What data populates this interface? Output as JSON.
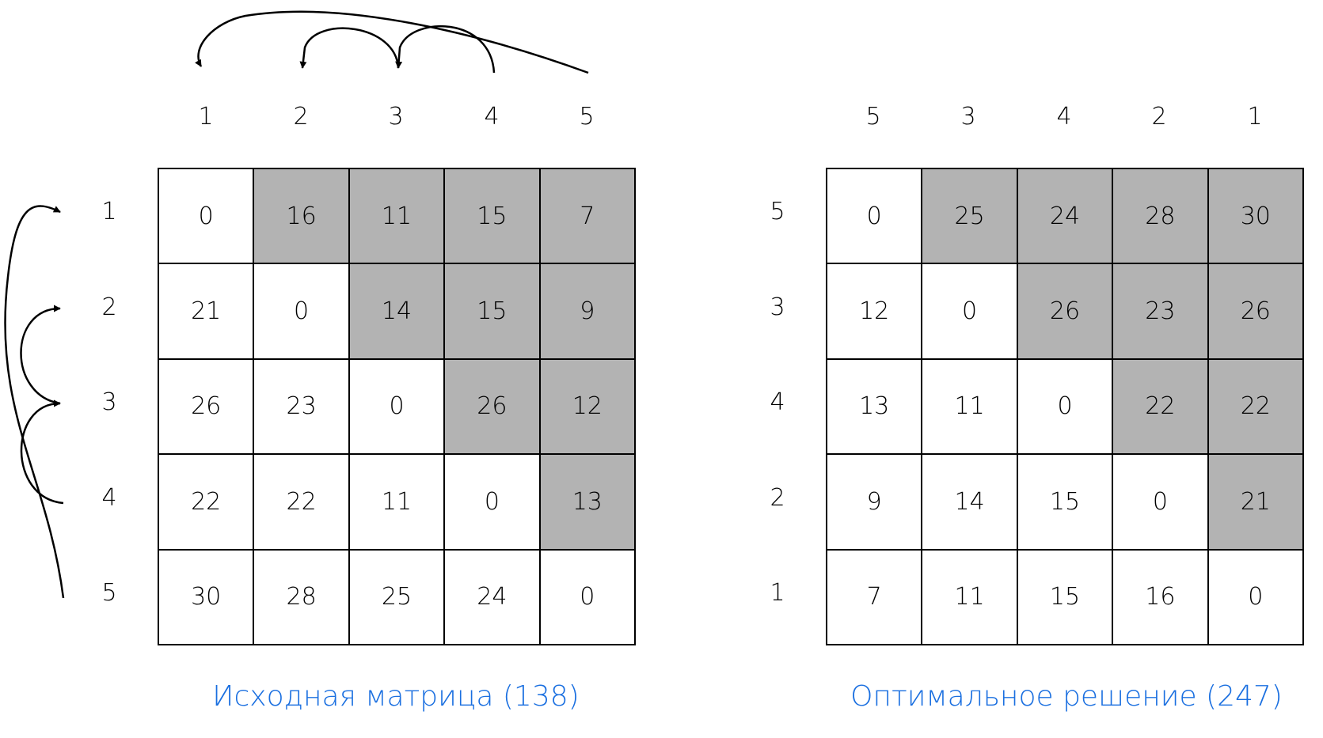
{
  "colors": {
    "shaded": "#b3b3b3",
    "grid": "#000000",
    "caption": "#1a6fe0"
  },
  "matrices": [
    {
      "caption": "Исходная матрица (138)",
      "col_labels": [
        "1",
        "2",
        "3",
        "4",
        "5"
      ],
      "row_labels": [
        "1",
        "2",
        "3",
        "4",
        "5"
      ],
      "rows": [
        [
          "0",
          "16",
          "11",
          "15",
          "7"
        ],
        [
          "21",
          "0",
          "14",
          "15",
          "9"
        ],
        [
          "26",
          "23",
          "0",
          "26",
          "12"
        ],
        [
          "22",
          "22",
          "11",
          "0",
          "13"
        ],
        [
          "30",
          "28",
          "25",
          "24",
          "0"
        ]
      ],
      "shaded": "upper-triangle"
    },
    {
      "caption": "Оптимальное решение (247)",
      "col_labels": [
        "5",
        "3",
        "4",
        "2",
        "1"
      ],
      "row_labels": [
        "5",
        "3",
        "4",
        "2",
        "1"
      ],
      "rows": [
        [
          "0",
          "25",
          "24",
          "28",
          "30"
        ],
        [
          "12",
          "0",
          "26",
          "23",
          "26"
        ],
        [
          "13",
          "11",
          "0",
          "22",
          "22"
        ],
        [
          "9",
          "14",
          "15",
          "0",
          "21"
        ],
        [
          "7",
          "11",
          "15",
          "16",
          "0"
        ]
      ],
      "shaded": "upper-triangle"
    }
  ]
}
